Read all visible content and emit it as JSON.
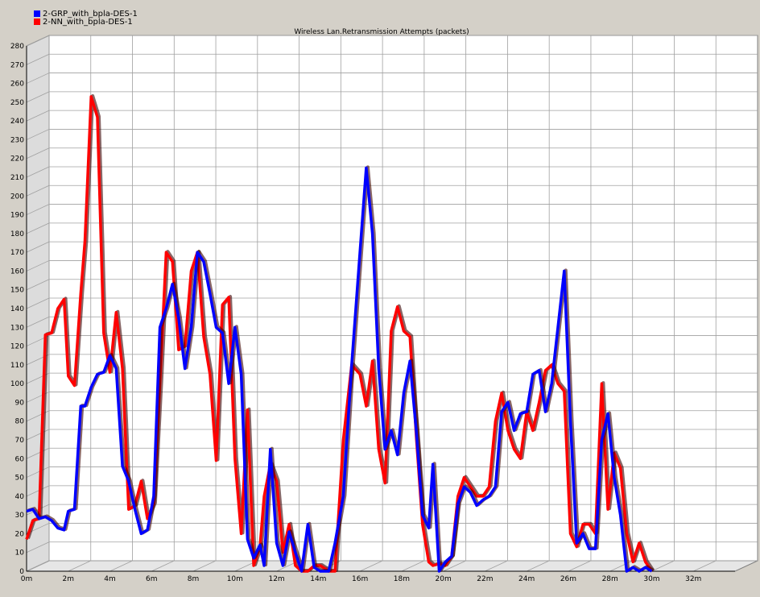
{
  "legend": [
    {
      "label": "2-GRP_with_bpla-DES-1",
      "color": "#0000ff"
    },
    {
      "label": "2-NN_with_bpla-DES-1",
      "color": "#ff0000"
    }
  ],
  "chart_data": {
    "type": "line",
    "title": "Wireless Lan.Retransmission Attempts (packets)",
    "xlabel": "",
    "ylabel": "",
    "xlim": [
      0,
      34
    ],
    "ylim": [
      0,
      280
    ],
    "x_ticks": [
      0,
      2,
      4,
      6,
      8,
      10,
      12,
      14,
      16,
      18,
      20,
      22,
      24,
      26,
      28,
      30,
      32
    ],
    "x_tick_labels": [
      "0m",
      "2m",
      "4m",
      "6m",
      "8m",
      "10m",
      "12m",
      "14m",
      "16m",
      "18m",
      "20m",
      "22m",
      "24m",
      "26m",
      "28m",
      "30m",
      "32m"
    ],
    "y_ticks": [
      0,
      10,
      20,
      30,
      40,
      50,
      60,
      70,
      80,
      90,
      100,
      110,
      120,
      130,
      140,
      150,
      160,
      170,
      180,
      190,
      200,
      210,
      220,
      230,
      240,
      250,
      260,
      270,
      280
    ],
    "grid": true,
    "legend_position": "top-left",
    "series": [
      {
        "name": "2-GRP_with_bpla-DES-1",
        "color": "#0000ff",
        "x": [
          0,
          0.3,
          0.6,
          0.9,
          1.2,
          1.5,
          1.8,
          2.0,
          2.3,
          2.6,
          2.8,
          3.1,
          3.4,
          3.7,
          4.0,
          4.3,
          4.6,
          4.9,
          5.2,
          5.5,
          5.8,
          6.1,
          6.4,
          6.7,
          7.0,
          7.3,
          7.6,
          7.9,
          8.2,
          8.5,
          8.8,
          9.1,
          9.4,
          9.7,
          10.0,
          10.3,
          10.6,
          10.9,
          11.2,
          11.4,
          11.7,
          12.0,
          12.3,
          12.6,
          12.9,
          13.2,
          13.5,
          13.8,
          14.1,
          14.5,
          14.8,
          15.2,
          15.6,
          16.0,
          16.3,
          16.6,
          16.9,
          17.2,
          17.5,
          17.8,
          18.1,
          18.4,
          18.7,
          19.0,
          19.3,
          19.5,
          19.8,
          20.1,
          20.4,
          20.7,
          21.0,
          21.3,
          21.6,
          21.9,
          22.2,
          22.5,
          22.8,
          23.1,
          23.4,
          23.7,
          24.0,
          24.3,
          24.6,
          24.9,
          25.2,
          25.5,
          25.8,
          26.1,
          26.4,
          26.7,
          27.0,
          27.3,
          27.6,
          27.9,
          28.2,
          28.5,
          28.8,
          29.1,
          29.4,
          29.7,
          30.0
        ],
        "y": [
          32,
          33,
          28,
          29,
          27,
          23,
          22,
          32,
          33,
          88,
          88,
          98,
          105,
          106,
          115,
          108,
          56,
          48,
          33,
          20,
          22,
          40,
          130,
          140,
          153,
          135,
          108,
          130,
          170,
          165,
          148,
          130,
          127,
          100,
          130,
          105,
          17,
          7,
          14,
          3,
          65,
          15,
          3,
          21,
          10,
          0,
          25,
          2,
          0,
          0,
          15,
          40,
          110,
          170,
          215,
          180,
          108,
          65,
          75,
          62,
          95,
          112,
          75,
          30,
          23,
          57,
          0,
          5,
          8,
          36,
          45,
          42,
          35,
          38,
          40,
          45,
          85,
          90,
          75,
          84,
          85,
          105,
          107,
          85,
          100,
          130,
          160,
          80,
          15,
          20,
          12,
          12,
          70,
          84,
          50,
          30,
          0,
          2,
          0,
          2,
          0
        ]
      },
      {
        "name": "2-NN_with_bpla-DES-1",
        "color": "#ff0000",
        "x": [
          0,
          0.3,
          0.6,
          0.9,
          1.2,
          1.5,
          1.8,
          2.0,
          2.3,
          2.6,
          2.8,
          3.1,
          3.4,
          3.7,
          4.0,
          4.3,
          4.6,
          4.9,
          5.2,
          5.5,
          5.8,
          6.1,
          6.4,
          6.7,
          7.0,
          7.3,
          7.6,
          7.9,
          8.2,
          8.5,
          8.8,
          9.1,
          9.4,
          9.7,
          10.0,
          10.3,
          10.6,
          10.9,
          11.2,
          11.4,
          11.7,
          12.0,
          12.3,
          12.6,
          12.9,
          13.2,
          13.5,
          13.8,
          14.1,
          14.5,
          14.8,
          15.2,
          15.6,
          16.0,
          16.3,
          16.6,
          16.9,
          17.2,
          17.5,
          17.8,
          18.1,
          18.4,
          18.7,
          19.0,
          19.3,
          19.5,
          19.8,
          20.1,
          20.4,
          20.7,
          21.0,
          21.3,
          21.6,
          21.9,
          22.2,
          22.5,
          22.8,
          23.1,
          23.4,
          23.7,
          24.0,
          24.3,
          24.6,
          24.9,
          25.2,
          25.5,
          25.8,
          26.1,
          26.4,
          26.7,
          27.0,
          27.3,
          27.6,
          27.9,
          28.2,
          28.5,
          28.8,
          29.1,
          29.4,
          29.7,
          30.0
        ],
        "y": [
          17,
          27,
          28,
          126,
          127,
          140,
          145,
          104,
          99,
          148,
          176,
          253,
          242,
          127,
          106,
          138,
          108,
          33,
          35,
          48,
          28,
          36,
          100,
          170,
          165,
          118,
          120,
          160,
          170,
          125,
          105,
          59,
          142,
          146,
          60,
          20,
          86,
          3,
          13,
          40,
          57,
          48,
          10,
          25,
          3,
          0,
          0,
          3,
          3,
          0,
          0,
          70,
          110,
          105,
          88,
          112,
          65,
          47,
          128,
          141,
          128,
          125,
          72,
          25,
          5,
          3,
          4,
          3,
          8,
          40,
          50,
          45,
          40,
          40,
          45,
          80,
          95,
          75,
          65,
          60,
          85,
          75,
          90,
          107,
          110,
          100,
          96,
          20,
          13,
          25,
          25,
          20,
          100,
          33,
          63,
          55,
          20,
          5,
          15,
          5,
          0
        ]
      }
    ]
  }
}
